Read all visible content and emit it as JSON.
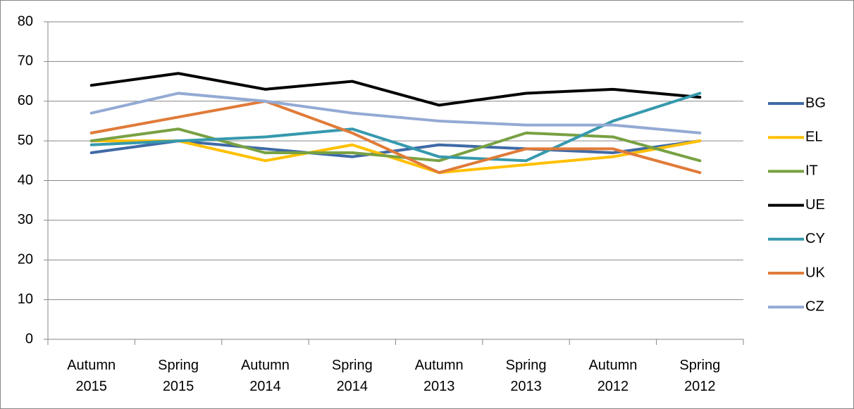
{
  "chart_data": {
    "type": "line",
    "categories": [
      "Autumn 2015",
      "Spring 2015",
      "Autumn 2014",
      "Spring 2014",
      "Autumn 2013",
      "Spring 2013",
      "Autumn 2012",
      "Spring 2012"
    ],
    "series": [
      {
        "name": "BG",
        "color": "#3f6aa6",
        "values": [
          47,
          50,
          48,
          46,
          49,
          48,
          47,
          50
        ]
      },
      {
        "name": "EL",
        "color": "#ffc000",
        "values": [
          50,
          50,
          45,
          49,
          42,
          44,
          46,
          50
        ]
      },
      {
        "name": "IT",
        "color": "#78a143",
        "values": [
          50,
          53,
          47,
          47,
          45,
          52,
          51,
          45
        ]
      },
      {
        "name": "UE",
        "color": "#000000",
        "values": [
          64,
          67,
          63,
          65,
          59,
          62,
          63,
          61
        ]
      },
      {
        "name": "CY",
        "color": "#3699ad",
        "values": [
          49,
          50,
          51,
          53,
          46,
          45,
          55,
          62
        ]
      },
      {
        "name": "UK",
        "color": "#e07b39",
        "values": [
          52,
          56,
          60,
          52,
          42,
          48,
          48,
          42
        ]
      },
      {
        "name": "CZ",
        "color": "#94aad4",
        "values": [
          57,
          62,
          60,
          57,
          55,
          54,
          54,
          52
        ]
      }
    ],
    "ylim": [
      0,
      80
    ],
    "yticks": [
      0,
      10,
      20,
      30,
      40,
      50,
      60,
      70,
      80
    ],
    "grid": true,
    "legend": "right"
  }
}
